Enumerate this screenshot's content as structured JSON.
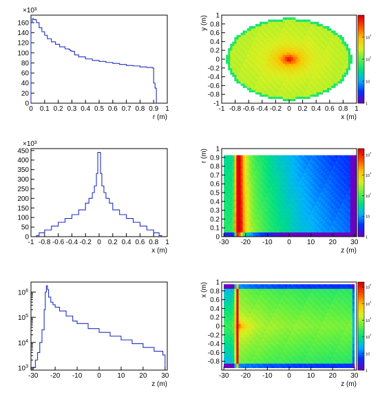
{
  "palette": {
    "line": "#1f2fbf",
    "axis": "#000000",
    "colorbar_stops": [
      "#6a00c0",
      "#0030ff",
      "#00b0ff",
      "#00e080",
      "#60f040",
      "#d8f020",
      "#ffc000",
      "#ff5000",
      "#e00000"
    ]
  },
  "chart_data": [
    {
      "id": "r-dist",
      "type": "step",
      "xlabel": "r (m)",
      "xlim": [
        0,
        1
      ],
      "ylim": [
        0,
        175
      ],
      "yscale": "linear",
      "exponent_label": "×10³",
      "xticks": [
        {
          "v": 0,
          "t": "0"
        },
        {
          "v": 0.1,
          "t": "0.1"
        },
        {
          "v": 0.2,
          "t": "0.2"
        },
        {
          "v": 0.3,
          "t": "0.3"
        },
        {
          "v": 0.4,
          "t": "0.4"
        },
        {
          "v": 0.5,
          "t": "0.5"
        },
        {
          "v": 0.6,
          "t": "0.6"
        },
        {
          "v": 0.7,
          "t": "0.7"
        },
        {
          "v": 0.8,
          "t": "0.8"
        },
        {
          "v": 0.9,
          "t": "0.9"
        },
        {
          "v": 1,
          "t": "1"
        }
      ],
      "yticks": [
        {
          "v": 0,
          "t": "0"
        },
        {
          "v": 20,
          "t": "20"
        },
        {
          "v": 40,
          "t": "40"
        },
        {
          "v": 60,
          "t": "60"
        },
        {
          "v": 80,
          "t": "80"
        },
        {
          "v": 100,
          "t": "100"
        },
        {
          "v": 120,
          "t": "120"
        },
        {
          "v": 140,
          "t": "140"
        },
        {
          "v": 160,
          "t": "160"
        }
      ],
      "x": [
        0,
        0.01,
        0.02,
        0.04,
        0.06,
        0.08,
        0.1,
        0.12,
        0.15,
        0.18,
        0.21,
        0.25,
        0.28,
        0.29,
        0.3,
        0.32,
        0.35,
        0.4,
        0.45,
        0.5,
        0.55,
        0.6,
        0.65,
        0.7,
        0.75,
        0.8,
        0.85,
        0.89,
        0.9,
        0.91,
        0.92
      ],
      "y": [
        160,
        168,
        166,
        160,
        150,
        142,
        135,
        128,
        122,
        117,
        112,
        108,
        106,
        104,
        103,
        96,
        92,
        88,
        85,
        83,
        81,
        79,
        77,
        75,
        74,
        72,
        71,
        70,
        40,
        30,
        0
      ]
    },
    {
      "id": "x-dist",
      "type": "step",
      "xlabel": "x (m)",
      "xlim": [
        -1,
        1
      ],
      "ylim": [
        0,
        460
      ],
      "yscale": "linear",
      "exponent_label": "×10³",
      "xticks": [
        {
          "v": -1,
          "t": "-1"
        },
        {
          "v": -0.8,
          "t": "-0.8"
        },
        {
          "v": -0.6,
          "t": "-0.6"
        },
        {
          "v": -0.4,
          "t": "-0.4"
        },
        {
          "v": -0.2,
          "t": "-0.2"
        },
        {
          "v": 0,
          "t": "0"
        },
        {
          "v": 0.2,
          "t": "0.2"
        },
        {
          "v": 0.4,
          "t": "0.4"
        },
        {
          "v": 0.6,
          "t": "0.6"
        },
        {
          "v": 0.8,
          "t": "0.8"
        },
        {
          "v": 1,
          "t": "1"
        }
      ],
      "yticks": [
        {
          "v": 0,
          "t": "0"
        },
        {
          "v": 50,
          "t": "50"
        },
        {
          "v": 100,
          "t": "100"
        },
        {
          "v": 150,
          "t": "150"
        },
        {
          "v": 200,
          "t": "200"
        },
        {
          "v": 250,
          "t": "250"
        },
        {
          "v": 300,
          "t": "300"
        },
        {
          "v": 350,
          "t": "350"
        },
        {
          "v": 400,
          "t": "400"
        },
        {
          "v": 450,
          "t": "450"
        }
      ],
      "x": [
        -0.92,
        -0.88,
        -0.8,
        -0.7,
        -0.6,
        -0.5,
        -0.4,
        -0.3,
        -0.2,
        -0.15,
        -0.1,
        -0.07,
        -0.04,
        -0.02,
        0,
        0.02,
        0.04,
        0.07,
        0.1,
        0.15,
        0.2,
        0.3,
        0.4,
        0.5,
        0.6,
        0.7,
        0.8,
        0.88,
        0.92
      ],
      "y": [
        5,
        20,
        35,
        55,
        75,
        95,
        115,
        140,
        175,
        200,
        230,
        265,
        330,
        440,
        440,
        330,
        265,
        230,
        200,
        175,
        140,
        115,
        95,
        75,
        55,
        35,
        20,
        5,
        0
      ]
    },
    {
      "id": "z-dist",
      "type": "step",
      "xlabel": "z (m)",
      "xlim": [
        -31,
        31
      ],
      "ylim_log": [
        2.9,
        6.4
      ],
      "yscale": "log",
      "xticks": [
        {
          "v": -30,
          "t": "-30"
        },
        {
          "v": -20,
          "t": "-20"
        },
        {
          "v": -10,
          "t": "-10"
        },
        {
          "v": 0,
          "t": "0"
        },
        {
          "v": 10,
          "t": "10"
        },
        {
          "v": 20,
          "t": "20"
        },
        {
          "v": 30,
          "t": "30"
        }
      ],
      "yticks": [
        {
          "v": 3,
          "b": "10",
          "e": "3"
        },
        {
          "v": 4,
          "b": "10",
          "e": "4"
        },
        {
          "v": 5,
          "b": "10",
          "e": "5"
        },
        {
          "v": 6,
          "b": "10",
          "e": "6"
        }
      ],
      "x": [
        -30,
        -29,
        -28,
        -27,
        -26,
        -25,
        -24.5,
        -24,
        -23.5,
        -23,
        -22,
        -21,
        -20,
        -18,
        -15,
        -12,
        -10,
        -5,
        0,
        5,
        10,
        15,
        20,
        25,
        29,
        30
      ],
      "y": [
        3.0,
        3.3,
        3.6,
        4.0,
        4.5,
        5.3,
        6.0,
        6.25,
        6.1,
        5.8,
        5.6,
        5.5,
        5.4,
        5.25,
        5.05,
        4.85,
        4.75,
        4.55,
        4.4,
        4.25,
        4.1,
        3.95,
        3.8,
        3.65,
        3.5,
        3.0
      ]
    },
    {
      "id": "xy-map",
      "type": "heatmap",
      "xlabel": "x (m)",
      "ylabel": "y (m)",
      "xlim": [
        -1,
        1
      ],
      "ylim": [
        -1,
        1
      ],
      "xticks": [
        {
          "v": -1,
          "t": "-1"
        },
        {
          "v": -0.8,
          "t": "-0.8"
        },
        {
          "v": -0.6,
          "t": "-0.6"
        },
        {
          "v": -0.4,
          "t": "-0.4"
        },
        {
          "v": -0.2,
          "t": "-0.2"
        },
        {
          "v": 0,
          "t": "0"
        },
        {
          "v": 0.2,
          "t": "0.2"
        },
        {
          "v": 0.4,
          "t": "0.4"
        },
        {
          "v": 0.6,
          "t": "0.6"
        },
        {
          "v": 0.8,
          "t": "0.8"
        },
        {
          "v": 1,
          "t": "1"
        }
      ],
      "yticks": [
        {
          "v": -1,
          "t": "-1"
        },
        {
          "v": -0.8,
          "t": "-0.8"
        },
        {
          "v": -0.6,
          "t": "-0.6"
        },
        {
          "v": -0.4,
          "t": "-0.4"
        },
        {
          "v": -0.2,
          "t": "-0.2"
        },
        {
          "v": 0,
          "t": "0"
        },
        {
          "v": 0.2,
          "t": "0.2"
        },
        {
          "v": 0.4,
          "t": "0.4"
        },
        {
          "v": 0.6,
          "t": "0.6"
        },
        {
          "v": 0.8,
          "t": "0.8"
        },
        {
          "v": 1,
          "t": "1"
        }
      ],
      "colorbar": {
        "log_min": 0,
        "log_max": 4,
        "ticks": [
          {
            "v": 0,
            "b": "1",
            "e": ""
          },
          {
            "v": 1,
            "b": "10",
            "e": ""
          },
          {
            "v": 2,
            "b": "10",
            "e": "2"
          },
          {
            "v": 3,
            "b": "10",
            "e": "3"
          }
        ]
      }
    },
    {
      "id": "zr-map",
      "type": "heatmap",
      "xlabel": "z (m)",
      "ylabel": "r (m)",
      "xlim": [
        -31,
        31
      ],
      "ylim": [
        0,
        1
      ],
      "xticks": [
        {
          "v": -30,
          "t": "-30"
        },
        {
          "v": -20,
          "t": "-20"
        },
        {
          "v": -10,
          "t": "-10"
        },
        {
          "v": 0,
          "t": "0"
        },
        {
          "v": 10,
          "t": "10"
        },
        {
          "v": 20,
          "t": "20"
        },
        {
          "v": 30,
          "t": "30"
        }
      ],
      "yticks": [
        {
          "v": 0,
          "t": "0"
        },
        {
          "v": 0.1,
          "t": "0.1"
        },
        {
          "v": 0.2,
          "t": "0.2"
        },
        {
          "v": 0.3,
          "t": "0.3"
        },
        {
          "v": 0.4,
          "t": "0.4"
        },
        {
          "v": 0.5,
          "t": "0.5"
        },
        {
          "v": 0.6,
          "t": "0.6"
        },
        {
          "v": 0.7,
          "t": "0.7"
        },
        {
          "v": 0.8,
          "t": "0.8"
        },
        {
          "v": 0.9,
          "t": "0.9"
        },
        {
          "v": 1,
          "t": "1"
        }
      ],
      "colorbar": {
        "log_min": 0,
        "log_max": 4.3,
        "ticks": [
          {
            "v": 0,
            "b": "1",
            "e": ""
          },
          {
            "v": 1,
            "b": "10",
            "e": ""
          },
          {
            "v": 2,
            "b": "10",
            "e": "2"
          },
          {
            "v": 3,
            "b": "10",
            "e": "3"
          },
          {
            "v": 4,
            "b": "10",
            "e": "4"
          }
        ]
      }
    },
    {
      "id": "zx-map",
      "type": "heatmap",
      "xlabel": "z (m)",
      "ylabel": "x (m)",
      "xlim": [
        -31,
        31
      ],
      "ylim": [
        -1,
        1
      ],
      "xticks": [
        {
          "v": -30,
          "t": "-30"
        },
        {
          "v": -20,
          "t": "-20"
        },
        {
          "v": -10,
          "t": "-10"
        },
        {
          "v": 0,
          "t": "0"
        },
        {
          "v": 10,
          "t": "10"
        },
        {
          "v": 20,
          "t": "20"
        },
        {
          "v": 30,
          "t": "30"
        }
      ],
      "yticks": [
        {
          "v": -0.8,
          "t": "-0.8"
        },
        {
          "v": -0.6,
          "t": "-0.6"
        },
        {
          "v": -0.4,
          "t": "-0.4"
        },
        {
          "v": -0.2,
          "t": "-0.2"
        },
        {
          "v": 0,
          "t": "0"
        },
        {
          "v": 0.2,
          "t": "0.2"
        },
        {
          "v": 0.4,
          "t": "0.4"
        },
        {
          "v": 0.6,
          "t": "0.6"
        },
        {
          "v": 0.8,
          "t": "0.8"
        },
        {
          "v": 1,
          "t": "1"
        }
      ],
      "colorbar": {
        "log_min": 0,
        "log_max": 5.3,
        "ticks": [
          {
            "v": 0,
            "b": "1",
            "e": ""
          },
          {
            "v": 1,
            "b": "10",
            "e": ""
          },
          {
            "v": 2,
            "b": "10",
            "e": "2"
          },
          {
            "v": 3,
            "b": "10",
            "e": "3"
          },
          {
            "v": 4,
            "b": "10",
            "e": "4"
          },
          {
            "v": 5,
            "b": "10",
            "e": "5"
          }
        ]
      }
    }
  ]
}
